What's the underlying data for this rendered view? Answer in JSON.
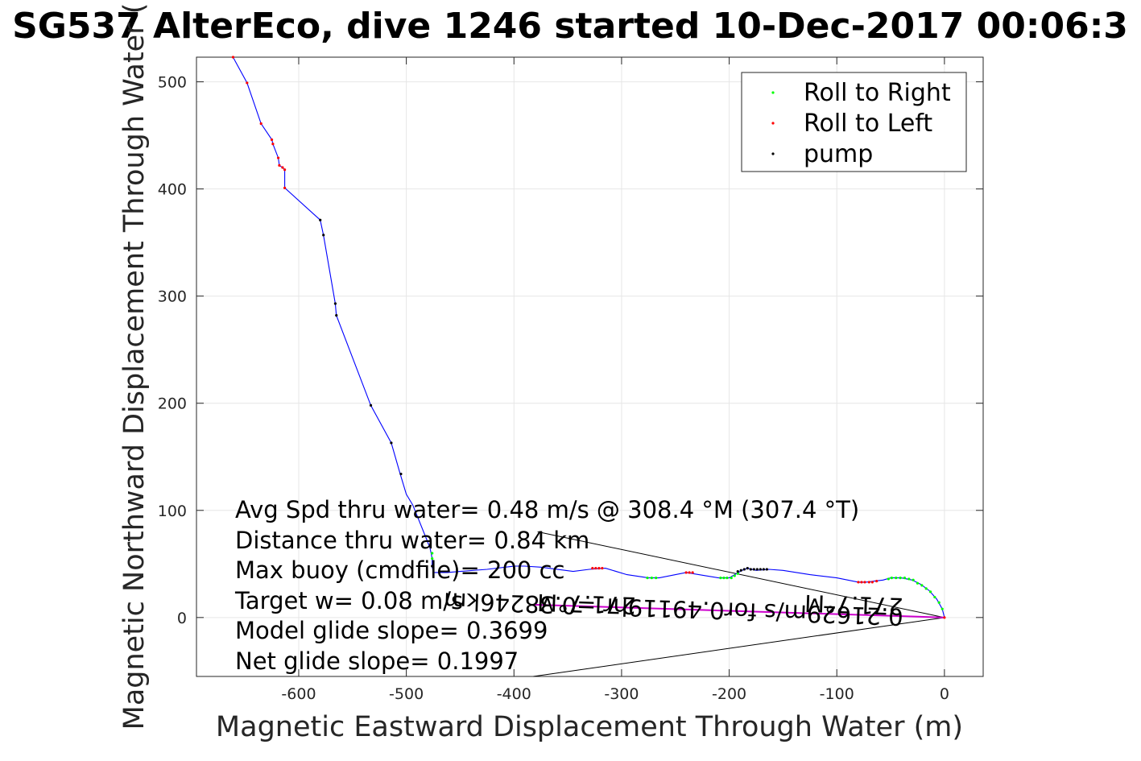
{
  "chart_data": {
    "type": "line",
    "title": "SG537 AlterEco, dive 1246 started 10-Dec-2017 00:06:3",
    "xlabel": "Magnetic Eastward Displacement Through Water (m)",
    "ylabel": "Magnetic Northward Displacement Through Water (",
    "xlim": [
      -695,
      36
    ],
    "ylim": [
      -55,
      523
    ],
    "xticks": [
      -600,
      -500,
      -400,
      -300,
      -200,
      -100,
      0
    ],
    "xtick_labels": [
      "-600",
      "-500",
      "-400",
      "-300",
      "-200",
      "-100",
      "0"
    ],
    "yticks": [
      0,
      100,
      200,
      300,
      400,
      500
    ],
    "ytick_labels": [
      "0",
      "100",
      "200",
      "300",
      "400",
      "500"
    ],
    "grid": true,
    "legend_position": "top-right",
    "legend": [
      {
        "label": "Roll to Right",
        "color": "#00ff00"
      },
      {
        "label": "Roll to Left",
        "color": "#ff0000"
      },
      {
        "label": "pump",
        "color": "#000000"
      }
    ],
    "track_color": "#0000ff",
    "track": [
      [
        0,
        0
      ],
      [
        -2,
        8
      ],
      [
        -7,
        17
      ],
      [
        -14,
        25
      ],
      [
        -22,
        31
      ],
      [
        -30,
        35
      ],
      [
        -40,
        37
      ],
      [
        -50,
        37
      ],
      [
        -57,
        35
      ],
      [
        -65,
        34
      ],
      [
        -73,
        33
      ],
      [
        -80,
        33
      ],
      [
        -100,
        37
      ],
      [
        -125,
        40
      ],
      [
        -150,
        44
      ],
      [
        -163,
        45
      ],
      [
        -175,
        44
      ],
      [
        -183,
        46
      ],
      [
        -188,
        44
      ],
      [
        -195,
        40
      ],
      [
        -200,
        37
      ],
      [
        -210,
        37
      ],
      [
        -222,
        39
      ],
      [
        -240,
        42
      ],
      [
        -265,
        37
      ],
      [
        -275,
        37
      ],
      [
        -295,
        40
      ],
      [
        -315,
        46
      ],
      [
        -330,
        45
      ],
      [
        -345,
        43
      ],
      [
        -375,
        47
      ],
      [
        -390,
        48
      ],
      [
        -400,
        48
      ],
      [
        -425,
        45
      ],
      [
        -450,
        43
      ],
      [
        -462,
        42
      ],
      [
        -475,
        42
      ],
      [
        -476,
        48
      ],
      [
        -476,
        55
      ],
      [
        -478,
        65
      ],
      [
        -482,
        75
      ],
      [
        -490,
        95
      ],
      [
        -494,
        105
      ],
      [
        -500,
        115
      ],
      [
        -506,
        135
      ],
      [
        -514,
        163
      ],
      [
        -533,
        198
      ],
      [
        -565,
        282
      ],
      [
        -566,
        293
      ],
      [
        -577,
        357
      ],
      [
        -580,
        371
      ],
      [
        -613,
        401
      ],
      [
        -613,
        418
      ],
      [
        -615,
        420
      ],
      [
        -618,
        422
      ],
      [
        -619,
        429
      ],
      [
        -624,
        442
      ],
      [
        -625,
        446
      ],
      [
        -635,
        461
      ],
      [
        -648,
        499
      ],
      [
        -661,
        523
      ]
    ],
    "markers_right": [
      [
        -2,
        8
      ],
      [
        -5,
        14
      ],
      [
        -9,
        19
      ],
      [
        -13,
        24
      ],
      [
        -17,
        27
      ],
      [
        -21,
        30
      ],
      [
        -25,
        32
      ],
      [
        -29,
        35
      ],
      [
        -33,
        36
      ],
      [
        -37,
        37
      ],
      [
        -41,
        37
      ],
      [
        -45,
        37
      ],
      [
        -49,
        37
      ],
      [
        -52,
        36
      ],
      [
        -268,
        37
      ],
      [
        -272,
        37
      ],
      [
        -276,
        37
      ],
      [
        -198,
        37
      ],
      [
        -202,
        37
      ],
      [
        -205,
        37
      ],
      [
        -208,
        37
      ],
      [
        -192,
        41
      ],
      [
        -195,
        39
      ],
      [
        -476,
        55
      ],
      [
        -476,
        60
      ]
    ],
    "markers_left": [
      [
        0,
        0
      ],
      [
        -63,
        34
      ],
      [
        -67,
        33
      ],
      [
        -70,
        33
      ],
      [
        -74,
        33
      ],
      [
        -77,
        33
      ],
      [
        -80,
        33
      ],
      [
        -234,
        42
      ],
      [
        -237,
        42
      ],
      [
        -240,
        42
      ],
      [
        -318,
        46
      ],
      [
        -321,
        46
      ],
      [
        -324,
        46
      ],
      [
        -327,
        46
      ],
      [
        -613,
        401
      ],
      [
        -613,
        418
      ],
      [
        -615,
        420
      ],
      [
        -618,
        422
      ],
      [
        -619,
        429
      ],
      [
        -624,
        442
      ],
      [
        -625,
        446
      ],
      [
        -635,
        461
      ],
      [
        -648,
        499
      ],
      [
        -661,
        523
      ]
    ],
    "markers_pump": [
      [
        -165,
        45
      ],
      [
        -168,
        45
      ],
      [
        -171,
        45
      ],
      [
        -174,
        45
      ],
      [
        -177,
        45
      ],
      [
        -180,
        45
      ],
      [
        -183,
        46
      ],
      [
        -186,
        45
      ],
      [
        -189,
        44
      ],
      [
        -192,
        43
      ],
      [
        -476,
        48
      ],
      [
        -505,
        134
      ],
      [
        -514,
        163
      ],
      [
        -533,
        198
      ],
      [
        -565,
        282
      ],
      [
        -566,
        293
      ],
      [
        -577,
        357
      ],
      [
        -580,
        371
      ]
    ],
    "magenta_segment": [
      [
        -382,
        12
      ],
      [
        0,
        0
      ]
    ],
    "black_lines": [
      [
        [
          0,
          0
        ],
        [
          -378,
          80
        ]
      ],
      [
        [
          0,
          0
        ],
        [
          -382,
          -55
        ]
      ]
    ],
    "stats_lines": [
      "Avg Spd thru water=  0.48 m/s @ 308.4 °M (307.4 °T)",
      "Distance thru water=  0.84 km",
      "Max buoy (cmdfile)= 200 cc",
      "Target w= 0.08 m/s",
      "Model glide slope= 0.3699",
      "Net glide slope= 0.1997"
    ],
    "vector_labels": [
      "0.21629m/s for0.49119hr =0.38246km",
      "271.7°M",
      "271.7°M"
    ]
  }
}
